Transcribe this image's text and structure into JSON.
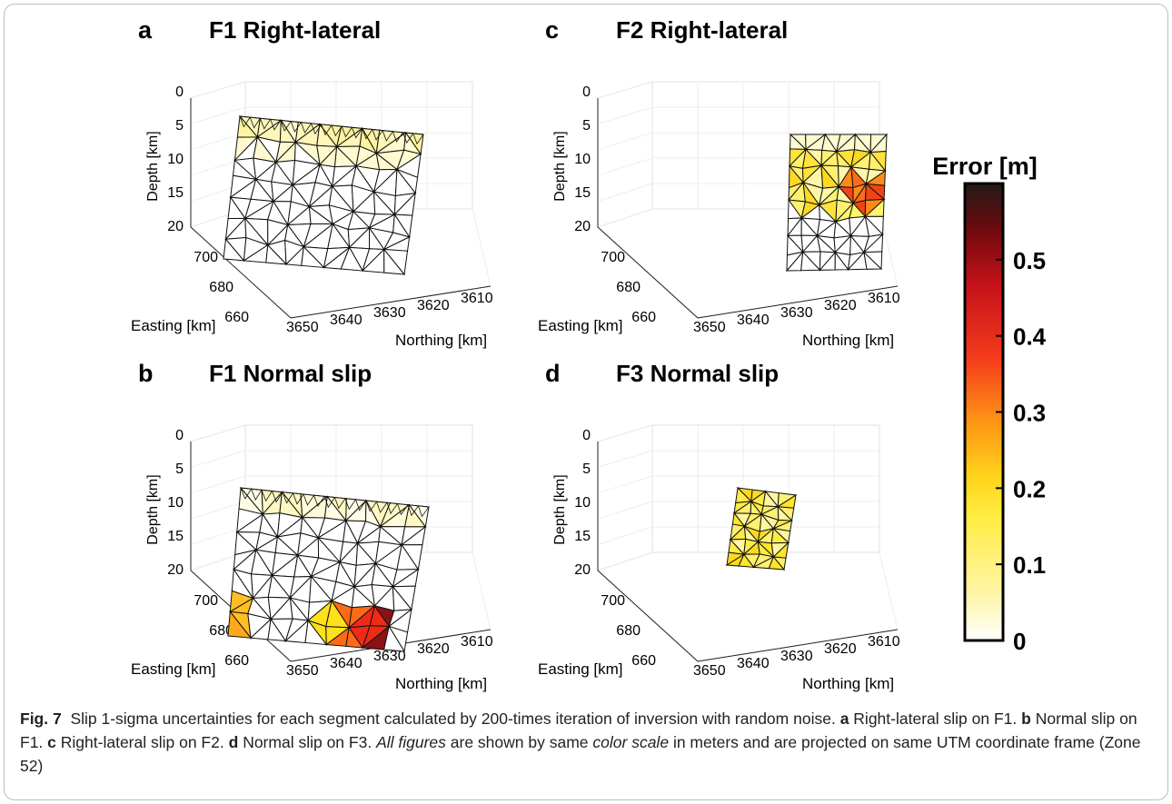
{
  "panels": [
    {
      "letter": "a",
      "title": "F1 Right-lateral",
      "ylabel": "Depth [km]",
      "xlabel": "Easting [km]",
      "nlabel": "Northing [km]",
      "depth_ticks": [
        "0",
        "5",
        "10",
        "15",
        "20"
      ],
      "easting_ticks": [
        "700",
        "680",
        "660"
      ],
      "northing_ticks": [
        "3650",
        "3640",
        "3630",
        "3620",
        "3610"
      ]
    },
    {
      "letter": "b",
      "title": "F1 Normal slip",
      "ylabel": "Depth [km]",
      "xlabel": "Easting [km]",
      "nlabel": "Northing [km]",
      "depth_ticks": [
        "0",
        "5",
        "10",
        "15",
        "20"
      ],
      "easting_ticks": [
        "700",
        "680",
        "660"
      ],
      "northing_ticks": [
        "3650",
        "3640",
        "3630",
        "3620",
        "3610"
      ]
    },
    {
      "letter": "c",
      "title": "F2 Right-lateral",
      "ylabel": "Depth [km]",
      "xlabel": "Easting [km]",
      "nlabel": "Northing [km]",
      "depth_ticks": [
        "0",
        "5",
        "10",
        "15",
        "20"
      ],
      "easting_ticks": [
        "700",
        "680",
        "660"
      ],
      "northing_ticks": [
        "3650",
        "3640",
        "3630",
        "3620",
        "3610"
      ]
    },
    {
      "letter": "d",
      "title": "F3 Normal slip",
      "ylabel": "Depth [km]",
      "xlabel": "Easting [km]",
      "nlabel": "Northing [km]",
      "depth_ticks": [
        "0",
        "5",
        "10",
        "15",
        "20"
      ],
      "easting_ticks": [
        "700",
        "680",
        "660"
      ],
      "northing_ticks": [
        "3650",
        "3640",
        "3630",
        "3620",
        "3610"
      ]
    }
  ],
  "colorbar": {
    "title": "Error [m]",
    "ticks": [
      "0.5",
      "0.4",
      "0.3",
      "0.2",
      "0.1",
      "0"
    ],
    "tick_values": [
      0.5,
      0.4,
      0.3,
      0.2,
      0.1,
      0
    ],
    "range": [
      0,
      0.6
    ],
    "colors": [
      "#ffffff",
      "#fff5a8",
      "#ffeb3d",
      "#ffd21a",
      "#ff9a16",
      "#f53a1c",
      "#c4121a",
      "#6e0a0d",
      "#221a18"
    ]
  },
  "caption": {
    "fig_label": "Fig. 7",
    "text": "Slip 1-sigma uncertainties for each segment calculated by 200-times iteration of inversion with random noise.",
    "a_label": "a",
    "a_text": "Right-lateral slip on F1.",
    "b_label": "b",
    "b_text": "Normal slip on F1.",
    "c_label": "c",
    "c_text": "Right-lateral slip on F2.",
    "d_label": "d",
    "d_text": "Normal slip on F3.",
    "italic_1": "All figures",
    "text_2": "are shown by same",
    "italic_2": "color scale",
    "text_3": "in meters and are projected on same UTM coordinate frame (Zone 52)"
  }
}
